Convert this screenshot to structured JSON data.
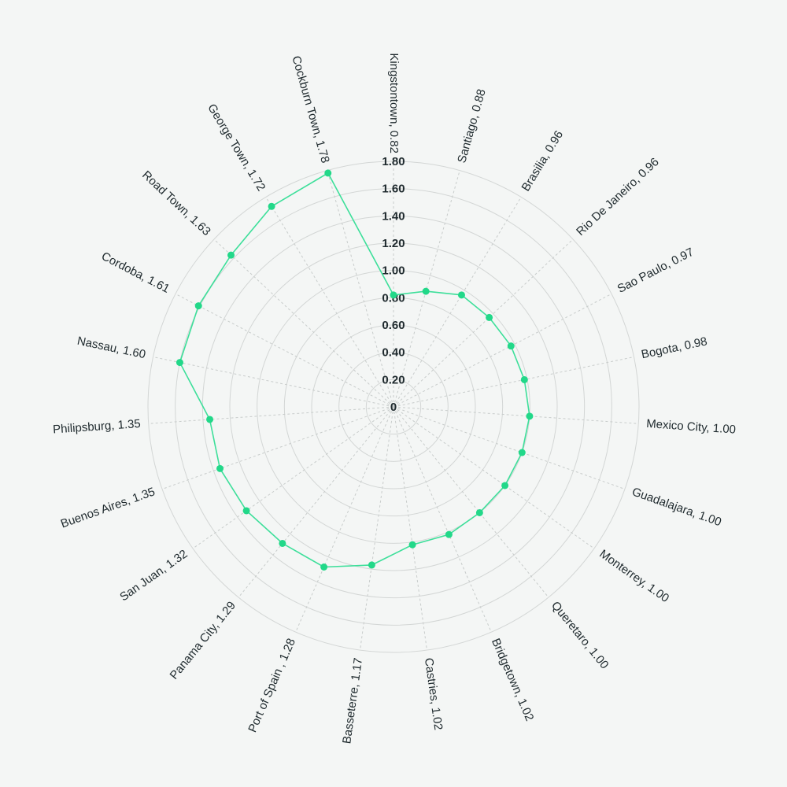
{
  "chart_data": {
    "type": "radar",
    "title": "",
    "r_ticks": [
      "0",
      "0.20",
      "0.40",
      "0.60",
      "0.80",
      "1.00",
      "1.20",
      "1.40",
      "1.60",
      "1.80"
    ],
    "r_max": 1.8,
    "grid": true,
    "line_color": "#3ddf9a",
    "dot_color": "#22d889",
    "categories": [
      "Kingstontown",
      "Santiago",
      "Brasilia",
      "Rio De Janeiro",
      "Sao Paulo",
      "Bogota",
      "Mexico City",
      "Guadalajara",
      "Monterrey",
      "Queretaro",
      "Bridgetown",
      "Castries",
      "Basseterre",
      "Port of Spain ",
      "Panama City",
      "San Juan",
      "Buenos Aires",
      "Philipsburg",
      "Nassau",
      "Cordoba",
      "Road Town",
      "George Town",
      "Cockburn Town"
    ],
    "labels": [
      "Kingstontown, 0.82",
      "Santiago, 0.88",
      "Brasilia, 0.96",
      "Rio De Janeiro, 0.96",
      "Sao Paulo, 0.97",
      "Bogota, 0.98",
      "Mexico City, 1.00",
      "Guadalajara, 1.00",
      "Monterrey, 1.00",
      "Queretaro, 1.00",
      "Bridgetown, 1.02",
      "Castries, 1.02",
      "Basseterre, 1.17",
      "Port of Spain , 1.28",
      "Panama City, 1.29",
      "San Juan, 1.32",
      "Buenos Aires, 1.35",
      "Philipsburg, 1.35",
      "Nassau, 1.60",
      "Cordoba, 1.61",
      "Road Town, 1.63",
      "George Town, 1.72",
      "Cockburn Town, 1.78"
    ],
    "values": [
      0.82,
      0.88,
      0.96,
      0.96,
      0.97,
      0.98,
      1.0,
      1.0,
      1.0,
      1.0,
      1.02,
      1.02,
      1.17,
      1.28,
      1.29,
      1.32,
      1.35,
      1.35,
      1.6,
      1.61,
      1.63,
      1.72,
      1.78
    ]
  }
}
